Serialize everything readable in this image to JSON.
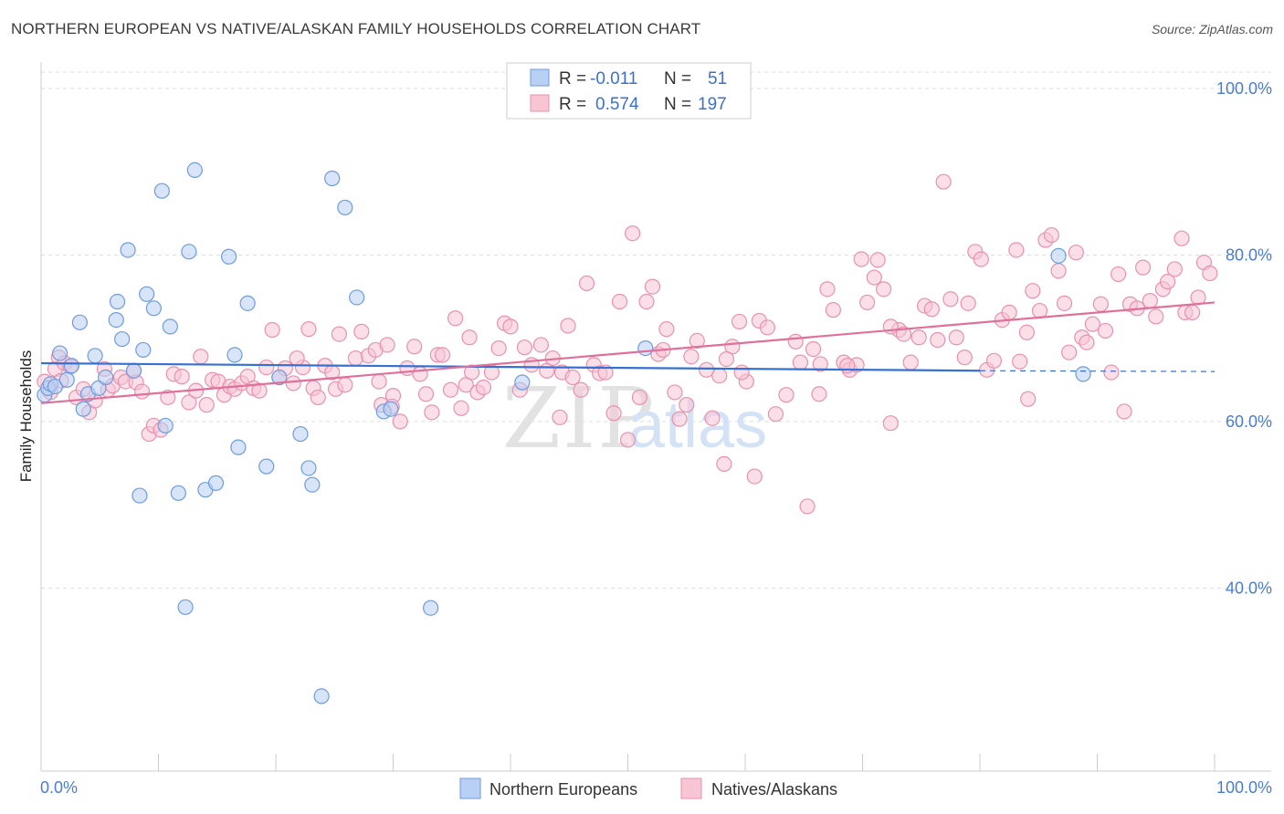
{
  "header": {
    "title": "NORTHERN EUROPEAN VS NATIVE/ALASKAN FAMILY HOUSEHOLDS CORRELATION CHART",
    "source": "Source: ZipAtlas.com"
  },
  "colors": {
    "blue_fill": "#b8d0f3",
    "blue_stroke": "#6e9be0",
    "blue_line": "#3570d3",
    "pink_fill": "#f8c5d5",
    "pink_stroke": "#e991ad",
    "pink_line": "#e0709a",
    "tick_text": "#4a7cd4",
    "grid": "#dddddd"
  },
  "stats": [
    {
      "r_label": "R =",
      "r": "-0.011",
      "n_label": "N =",
      "n": "51"
    },
    {
      "r_label": "R =",
      "r": "0.574",
      "n_label": "N =",
      "n": "197"
    }
  ],
  "watermark": {
    "zip": "ZIP",
    "atlas": "atlas"
  },
  "chart_data": {
    "type": "scatter",
    "title": "NORTHERN EUROPEAN VS NATIVE/ALASKAN FAMILY HOUSEHOLDS CORRELATION CHART",
    "xlabel": "",
    "ylabel": "Family Households",
    "xlim": [
      0,
      100
    ],
    "ylim": [
      18,
      104
    ],
    "x_tick_labels": [
      "0.0%",
      "100.0%"
    ],
    "y_ticks": [
      40,
      60,
      80,
      100
    ],
    "y_tick_labels": [
      "40.0%",
      "60.0%",
      "80.0%",
      "100.0%"
    ],
    "grid": true,
    "legend": [
      "Northern Europeans",
      "Natives/Alaskans"
    ],
    "legend_position": "bottom-center",
    "series": [
      {
        "name": "Northern Europeans",
        "color": "#b8d0f3",
        "trend": {
          "x": [
            0,
            80
          ],
          "y": [
            67.0,
            66.1
          ],
          "dashed_to_x": 100,
          "dashed_y": 66.0
        },
        "points": [
          [
            0.3,
            63.2
          ],
          [
            0.6,
            64.0
          ],
          [
            0.8,
            64.5
          ],
          [
            1.2,
            64.2
          ],
          [
            1.6,
            68.2
          ],
          [
            2.2,
            65.0
          ],
          [
            2.6,
            66.7
          ],
          [
            3.3,
            71.9
          ],
          [
            3.6,
            61.5
          ],
          [
            4.0,
            63.3
          ],
          [
            4.6,
            67.9
          ],
          [
            4.9,
            64.0
          ],
          [
            5.5,
            65.3
          ],
          [
            6.4,
            72.2
          ],
          [
            6.5,
            74.4
          ],
          [
            6.9,
            69.9
          ],
          [
            7.4,
            80.6
          ],
          [
            7.9,
            66.1
          ],
          [
            8.4,
            51.1
          ],
          [
            8.7,
            68.6
          ],
          [
            9.0,
            75.3
          ],
          [
            9.6,
            73.6
          ],
          [
            10.3,
            87.7
          ],
          [
            10.6,
            59.5
          ],
          [
            11.0,
            71.4
          ],
          [
            11.7,
            51.4
          ],
          [
            12.3,
            37.7
          ],
          [
            12.6,
            80.4
          ],
          [
            13.1,
            90.2
          ],
          [
            14.0,
            51.8
          ],
          [
            14.9,
            52.6
          ],
          [
            16.0,
            79.8
          ],
          [
            16.5,
            68.0
          ],
          [
            16.8,
            56.9
          ],
          [
            17.6,
            74.2
          ],
          [
            19.2,
            54.6
          ],
          [
            20.3,
            65.3
          ],
          [
            22.1,
            58.5
          ],
          [
            22.8,
            54.4
          ],
          [
            23.1,
            52.4
          ],
          [
            23.9,
            27.0
          ],
          [
            24.8,
            89.2
          ],
          [
            25.9,
            85.7
          ],
          [
            26.9,
            74.9
          ],
          [
            29.2,
            61.2
          ],
          [
            29.8,
            61.5
          ],
          [
            33.2,
            37.6
          ],
          [
            41.0,
            64.7
          ],
          [
            51.5,
            68.8
          ],
          [
            86.7,
            79.9
          ],
          [
            88.8,
            65.7
          ]
        ]
      },
      {
        "name": "Natives/Alaskans",
        "color": "#f8c5d5",
        "trend": {
          "x": [
            0,
            100
          ],
          "y": [
            62.2,
            74.3
          ]
        },
        "points": [
          [
            0.3,
            64.8
          ],
          [
            0.8,
            63.5
          ],
          [
            1.2,
            66.3
          ],
          [
            1.5,
            67.7
          ],
          [
            1.7,
            64.9
          ],
          [
            2.0,
            67.0
          ],
          [
            2.5,
            66.6
          ],
          [
            3.0,
            62.9
          ],
          [
            3.6,
            63.9
          ],
          [
            4.1,
            61.1
          ],
          [
            4.6,
            62.5
          ],
          [
            5.4,
            66.3
          ],
          [
            5.7,
            63.8
          ],
          [
            6.1,
            64.3
          ],
          [
            6.8,
            65.3
          ],
          [
            7.2,
            64.8
          ],
          [
            7.9,
            66.1
          ],
          [
            8.1,
            64.7
          ],
          [
            8.6,
            63.6
          ],
          [
            9.2,
            58.5
          ],
          [
            9.6,
            59.5
          ],
          [
            10.2,
            59.0
          ],
          [
            10.8,
            62.9
          ],
          [
            11.3,
            65.7
          ],
          [
            12.0,
            65.4
          ],
          [
            12.6,
            62.3
          ],
          [
            13.2,
            63.7
          ],
          [
            13.6,
            67.8
          ],
          [
            14.1,
            62.0
          ],
          [
            14.6,
            65.0
          ],
          [
            15.1,
            64.8
          ],
          [
            15.6,
            63.2
          ],
          [
            16.1,
            64.2
          ],
          [
            16.5,
            63.9
          ],
          [
            17.1,
            64.6
          ],
          [
            17.6,
            65.4
          ],
          [
            18.1,
            64.0
          ],
          [
            18.6,
            63.7
          ],
          [
            19.2,
            66.5
          ],
          [
            19.7,
            71.0
          ],
          [
            20.3,
            65.3
          ],
          [
            20.8,
            66.4
          ],
          [
            21.5,
            64.6
          ],
          [
            22.3,
            66.5
          ],
          [
            22.8,
            71.1
          ],
          [
            23.2,
            64.0
          ],
          [
            23.6,
            62.9
          ],
          [
            24.2,
            66.7
          ],
          [
            24.8,
            65.9
          ],
          [
            25.1,
            63.9
          ],
          [
            25.4,
            70.5
          ],
          [
            25.9,
            64.4
          ],
          [
            26.8,
            67.6
          ],
          [
            27.3,
            70.8
          ],
          [
            27.9,
            67.9
          ],
          [
            28.5,
            68.6
          ],
          [
            29.0,
            62.0
          ],
          [
            29.5,
            69.2
          ],
          [
            30.0,
            63.1
          ],
          [
            30.6,
            60.0
          ],
          [
            31.2,
            66.4
          ],
          [
            31.8,
            69.0
          ],
          [
            32.3,
            65.7
          ],
          [
            32.8,
            63.3
          ],
          [
            33.3,
            61.1
          ],
          [
            33.8,
            68.0
          ],
          [
            34.2,
            68.0
          ],
          [
            34.9,
            63.8
          ],
          [
            35.3,
            72.4
          ],
          [
            35.8,
            61.6
          ],
          [
            36.2,
            64.4
          ],
          [
            36.7,
            65.9
          ],
          [
            37.2,
            63.5
          ],
          [
            37.7,
            64.1
          ],
          [
            38.4,
            65.9
          ],
          [
            39.0,
            68.8
          ],
          [
            39.5,
            71.8
          ],
          [
            40.0,
            71.4
          ],
          [
            40.8,
            63.8
          ],
          [
            41.2,
            68.9
          ],
          [
            41.8,
            66.8
          ],
          [
            42.6,
            69.2
          ],
          [
            43.1,
            66.1
          ],
          [
            43.6,
            67.6
          ],
          [
            44.4,
            65.9
          ],
          [
            44.9,
            71.5
          ],
          [
            45.3,
            65.3
          ],
          [
            46.0,
            63.8
          ],
          [
            46.5,
            76.6
          ],
          [
            47.1,
            66.8
          ],
          [
            47.6,
            65.8
          ],
          [
            48.1,
            65.9
          ],
          [
            48.8,
            61.0
          ],
          [
            49.3,
            74.4
          ],
          [
            50.0,
            57.8
          ],
          [
            50.4,
            82.6
          ],
          [
            51.0,
            62.9
          ],
          [
            51.6,
            74.4
          ],
          [
            52.1,
            76.2
          ],
          [
            52.6,
            68.1
          ],
          [
            53.3,
            71.1
          ],
          [
            54.0,
            63.5
          ],
          [
            54.4,
            60.3
          ],
          [
            55.0,
            62.0
          ],
          [
            55.4,
            67.8
          ],
          [
            55.9,
            69.7
          ],
          [
            56.7,
            66.2
          ],
          [
            57.2,
            60.4
          ],
          [
            57.8,
            65.5
          ],
          [
            58.2,
            54.9
          ],
          [
            58.9,
            69.0
          ],
          [
            59.5,
            72.0
          ],
          [
            60.1,
            64.8
          ],
          [
            60.8,
            53.4
          ],
          [
            61.2,
            72.1
          ],
          [
            61.9,
            71.3
          ],
          [
            62.6,
            60.9
          ],
          [
            63.5,
            63.2
          ],
          [
            64.3,
            69.6
          ],
          [
            64.7,
            67.1
          ],
          [
            65.3,
            49.8
          ],
          [
            65.8,
            68.7
          ],
          [
            66.4,
            66.9
          ],
          [
            67.0,
            75.9
          ],
          [
            67.5,
            73.4
          ],
          [
            68.4,
            67.1
          ],
          [
            68.9,
            66.2
          ],
          [
            69.5,
            66.8
          ],
          [
            69.9,
            79.5
          ],
          [
            70.4,
            74.3
          ],
          [
            71.0,
            77.3
          ],
          [
            71.3,
            79.4
          ],
          [
            71.8,
            75.9
          ],
          [
            72.4,
            59.8
          ],
          [
            73.1,
            71.0
          ],
          [
            73.5,
            70.5
          ],
          [
            74.1,
            67.1
          ],
          [
            74.8,
            70.1
          ],
          [
            75.3,
            73.9
          ],
          [
            75.9,
            73.5
          ],
          [
            76.4,
            69.8
          ],
          [
            76.9,
            88.8
          ],
          [
            77.5,
            74.7
          ],
          [
            78.0,
            70.1
          ],
          [
            78.7,
            67.7
          ],
          [
            79.0,
            74.2
          ],
          [
            79.6,
            80.4
          ],
          [
            80.1,
            79.5
          ],
          [
            80.6,
            66.2
          ],
          [
            81.2,
            67.3
          ],
          [
            81.9,
            72.2
          ],
          [
            82.5,
            73.1
          ],
          [
            83.1,
            80.6
          ],
          [
            83.4,
            67.2
          ],
          [
            84.0,
            70.7
          ],
          [
            84.5,
            75.7
          ],
          [
            85.1,
            73.3
          ],
          [
            85.6,
            81.8
          ],
          [
            86.1,
            82.4
          ],
          [
            86.7,
            78.1
          ],
          [
            87.2,
            74.2
          ],
          [
            87.6,
            68.3
          ],
          [
            88.2,
            80.3
          ],
          [
            88.7,
            70.1
          ],
          [
            89.1,
            69.5
          ],
          [
            89.6,
            71.7
          ],
          [
            90.3,
            74.1
          ],
          [
            90.7,
            70.9
          ],
          [
            91.2,
            65.9
          ],
          [
            91.8,
            77.7
          ],
          [
            92.3,
            61.2
          ],
          [
            92.8,
            74.1
          ],
          [
            93.4,
            73.6
          ],
          [
            93.9,
            78.5
          ],
          [
            94.5,
            74.5
          ],
          [
            95.0,
            72.6
          ],
          [
            95.6,
            75.9
          ],
          [
            96.0,
            76.8
          ],
          [
            96.6,
            78.3
          ],
          [
            97.2,
            82.0
          ],
          [
            97.5,
            73.1
          ],
          [
            98.1,
            73.1
          ],
          [
            98.6,
            74.9
          ],
          [
            99.1,
            79.1
          ],
          [
            99.6,
            77.8
          ],
          [
            59.7,
            65.9
          ],
          [
            66.3,
            63.3
          ],
          [
            72.4,
            71.4
          ],
          [
            84.1,
            62.7
          ],
          [
            68.7,
            66.7
          ],
          [
            28.8,
            64.8
          ],
          [
            21.8,
            67.6
          ],
          [
            36.5,
            70.1
          ],
          [
            53.0,
            68.6
          ],
          [
            44.2,
            60.5
          ],
          [
            58.4,
            67.5
          ],
          [
            29.9,
            61.8
          ]
        ]
      }
    ]
  }
}
